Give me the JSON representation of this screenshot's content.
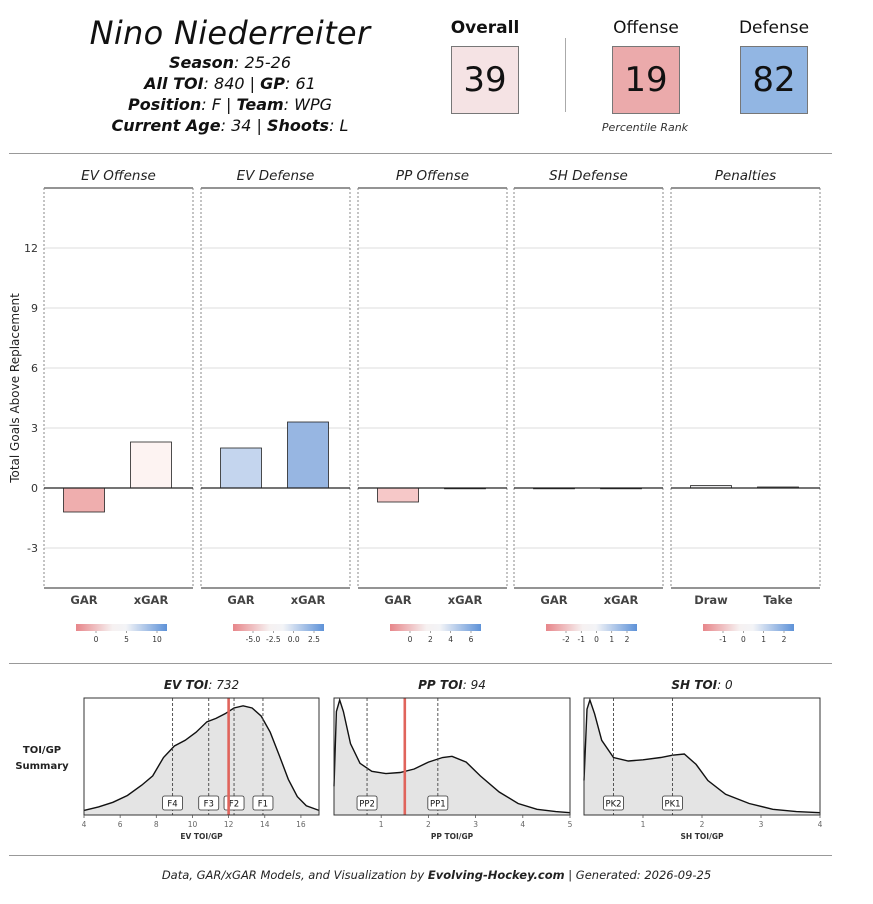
{
  "player": {
    "name": "Nino Niederreiter",
    "season_label": "Season",
    "season": "25-26",
    "toi_label": "All TOI",
    "toi": "840",
    "gp_label": "GP",
    "gp": "61",
    "position_label": "Position",
    "position": "F",
    "team_label": "Team",
    "team": "WPG",
    "age_label": "Current Age",
    "age": "34",
    "shoots_label": "Shoots",
    "shoots": "L"
  },
  "ranks": {
    "overall_label": "Overall",
    "overall": "39",
    "offense_label": "Offense",
    "offense": "19",
    "defense_label": "Defense",
    "defense": "82",
    "caption": "Percentile Rank",
    "colors": {
      "overall": "#f5e3e4",
      "offense": "#ebaaab",
      "defense": "#92b6e3"
    }
  },
  "chart_data": [
    {
      "type": "bar",
      "ylabel": "Total Goals Above Replacement",
      "ylim": [
        -5.0,
        15.0
      ],
      "yticks": [
        -3,
        0,
        3,
        6,
        9,
        12
      ],
      "grid": true,
      "panels": [
        {
          "title": "EV Offense",
          "categories": [
            "GAR",
            "xGAR"
          ],
          "values": [
            -1.2,
            2.3
          ],
          "colors": [
            "#efaeae",
            "#fdf3f2"
          ],
          "legend_ticks": [
            "0",
            "5",
            "10"
          ]
        },
        {
          "title": "EV Defense",
          "categories": [
            "GAR",
            "xGAR"
          ],
          "values": [
            2.0,
            3.3
          ],
          "colors": [
            "#c4d5ee",
            "#97b6e2"
          ],
          "legend_ticks": [
            "-5.0",
            "-2.5",
            "0.0",
            "2.5"
          ]
        },
        {
          "title": "PP Offense",
          "categories": [
            "GAR",
            "xGAR"
          ],
          "values": [
            -0.7,
            -0.03
          ],
          "colors": [
            "#f6c8c8",
            "#e8e8ea"
          ],
          "legend_ticks": [
            "0",
            "2",
            "4",
            "6"
          ]
        },
        {
          "title": "SH Defense",
          "categories": [
            "GAR",
            "xGAR"
          ],
          "values": [
            0.0,
            0.0
          ],
          "colors": [
            "#e3e3e6",
            "#e3e3e6"
          ],
          "legend_ticks": [
            "-2",
            "-1",
            "0",
            "1",
            "2"
          ]
        },
        {
          "title": "Penalties",
          "categories": [
            "Draw",
            "Take"
          ],
          "values": [
            0.12,
            0.05
          ],
          "colors": [
            "#e8e8ea",
            "#e8e8ea"
          ],
          "legend_ticks": [
            "-1",
            "0",
            "1",
            "2"
          ]
        }
      ]
    },
    {
      "type": "area",
      "summary_label_1": "TOI/GP",
      "summary_label_2": "Summary",
      "panels": [
        {
          "title_label": "EV TOI",
          "title_value": "732",
          "xlabel": "EV TOI/GP",
          "xlim": [
            4,
            17
          ],
          "xticks": [
            4,
            6,
            8,
            10,
            12,
            14,
            16
          ],
          "markers": [
            {
              "label": "F4",
              "x": 8.9
            },
            {
              "label": "F3",
              "x": 10.9
            },
            {
              "label": "F2",
              "x": 12.3
            },
            {
              "label": "F1",
              "x": 13.9
            }
          ],
          "player_value": 12.0,
          "density": [
            [
              4,
              0.04
            ],
            [
              4.8,
              0.07
            ],
            [
              5.6,
              0.11
            ],
            [
              6.4,
              0.17
            ],
            [
              7.2,
              0.26
            ],
            [
              7.8,
              0.34
            ],
            [
              8.4,
              0.5
            ],
            [
              9.0,
              0.6
            ],
            [
              9.6,
              0.65
            ],
            [
              10.2,
              0.72
            ],
            [
              10.8,
              0.81
            ],
            [
              11.3,
              0.84
            ],
            [
              11.8,
              0.88
            ],
            [
              12.3,
              0.93
            ],
            [
              12.8,
              0.95
            ],
            [
              13.3,
              0.93
            ],
            [
              13.8,
              0.86
            ],
            [
              14.3,
              0.72
            ],
            [
              14.8,
              0.52
            ],
            [
              15.3,
              0.31
            ],
            [
              15.8,
              0.16
            ],
            [
              16.3,
              0.08
            ],
            [
              17,
              0.04
            ]
          ]
        },
        {
          "title_label": "PP TOI",
          "title_value": "94",
          "xlabel": "PP TOI/GP",
          "xlim": [
            0,
            5
          ],
          "xticks": [
            1,
            2,
            3,
            4,
            5
          ],
          "markers": [
            {
              "label": "PP2",
              "x": 0.7
            },
            {
              "label": "PP1",
              "x": 2.2
            }
          ],
          "player_value": 1.5,
          "density": [
            [
              0,
              0.25
            ],
            [
              0.05,
              0.9
            ],
            [
              0.12,
              1.0
            ],
            [
              0.2,
              0.9
            ],
            [
              0.35,
              0.62
            ],
            [
              0.55,
              0.45
            ],
            [
              0.8,
              0.38
            ],
            [
              1.1,
              0.36
            ],
            [
              1.4,
              0.37
            ],
            [
              1.7,
              0.4
            ],
            [
              2.0,
              0.46
            ],
            [
              2.3,
              0.5
            ],
            [
              2.5,
              0.51
            ],
            [
              2.8,
              0.46
            ],
            [
              3.1,
              0.34
            ],
            [
              3.5,
              0.2
            ],
            [
              3.9,
              0.1
            ],
            [
              4.3,
              0.05
            ],
            [
              4.7,
              0.03
            ],
            [
              5,
              0.02
            ]
          ]
        },
        {
          "title_label": "SH TOI",
          "title_value": "0",
          "xlabel": "SH TOI/GP",
          "xlim": [
            0,
            4
          ],
          "xticks": [
            1,
            2,
            3,
            4
          ],
          "markers": [
            {
              "label": "PK2",
              "x": 0.5
            },
            {
              "label": "PK1",
              "x": 1.5
            }
          ],
          "player_value": null,
          "density": [
            [
              0,
              0.3
            ],
            [
              0.05,
              0.92
            ],
            [
              0.1,
              1.0
            ],
            [
              0.18,
              0.88
            ],
            [
              0.3,
              0.65
            ],
            [
              0.5,
              0.5
            ],
            [
              0.75,
              0.47
            ],
            [
              1.0,
              0.48
            ],
            [
              1.3,
              0.5
            ],
            [
              1.5,
              0.52
            ],
            [
              1.7,
              0.53
            ],
            [
              1.9,
              0.44
            ],
            [
              2.1,
              0.3
            ],
            [
              2.4,
              0.18
            ],
            [
              2.8,
              0.1
            ],
            [
              3.2,
              0.05
            ],
            [
              3.6,
              0.03
            ],
            [
              4,
              0.02
            ]
          ]
        }
      ]
    }
  ],
  "footer": {
    "prefix": "Data, GAR/xGAR Models, and Visualization by",
    "brand": "Evolving-Hockey.com",
    "generated": "| Generated: 2026-09-25"
  }
}
